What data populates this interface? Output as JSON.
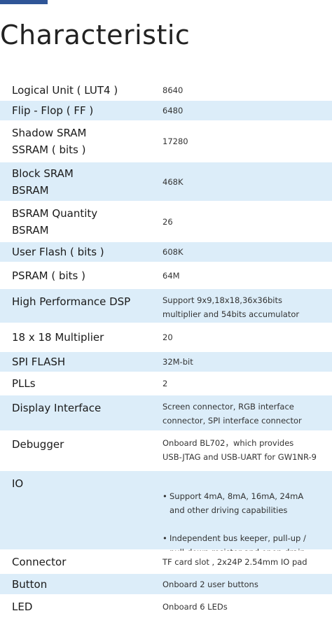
{
  "title": "Characteristic",
  "rows": [
    {
      "label": "Logical Unit ( LUT4 )",
      "value": "8640"
    },
    {
      "label": "Flip - Flop ( FF )",
      "value": "6480"
    },
    {
      "label": "Shadow SRAM\nSSRAM ( bits )",
      "value": "17280"
    },
    {
      "label": "Block SRAM\nBSRAM",
      "value": "468K"
    },
    {
      "label": "BSRAM Quantity\nBSRAM",
      "value": "26"
    },
    {
      "label": "User Flash ( bits )",
      "value": "608K"
    },
    {
      "label": "PSRAM ( bits )",
      "value": "64M"
    },
    {
      "label": "High Performance DSP",
      "value": "Support 9x9,18x18,36x36bits\nmultiplier and 54bits accumulator"
    },
    {
      "label": "18 x 18 Multiplier",
      "value": "20"
    },
    {
      "label": "SPI FLASH",
      "value": "32M-bit"
    },
    {
      "label": "PLLs",
      "value": "2"
    },
    {
      "label": "Display Interface",
      "value": "Screen connector, RGB interface\nconnector, SPI interface connector"
    },
    {
      "label": "Debugger",
      "value": "Onboard BL702，which provides\nUSB-JTAG and USB-UART for GW1NR-9"
    },
    {
      "label": "IO",
      "bullets": [
        "Support 4mA, 8mA, 16mA, 24mA\nand other driving capabilities",
        "Independent bus keeper, pull-up /\npull-down resistor and open drain\noutput options are provided for each I/O"
      ]
    },
    {
      "label": "Connector",
      "value": "TF card slot , 2x24P 2.54mm IO pad"
    },
    {
      "label": "Button",
      "value": "Onboard 2 user buttons"
    },
    {
      "label": "LED",
      "value": "Onboard 6 LEDs"
    }
  ],
  "colors": {
    "accent": "#2f5597",
    "row_shade": "#dcedf9"
  }
}
